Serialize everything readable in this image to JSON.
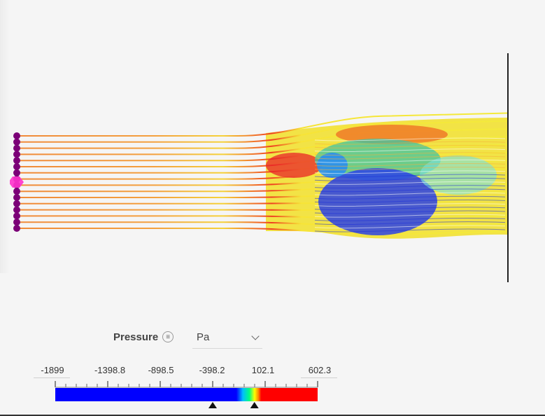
{
  "legend": {
    "title": "Pressure",
    "menu_icon": "menu-icon",
    "unit": "Pa",
    "labels": [
      "-1899",
      "-1398.8",
      "-898.5",
      "-398.2",
      "102.1",
      "602.3"
    ],
    "min_value": -1899,
    "max_value": 602.3,
    "lower_handle_value": -398.2,
    "upper_handle_value": 0
  },
  "colors": {
    "low": "#0000ff",
    "high": "#ff0000",
    "streamline": "#f08a3a",
    "seed": "#7b0077",
    "probe": "#ff33cc",
    "wall": "#222222"
  }
}
